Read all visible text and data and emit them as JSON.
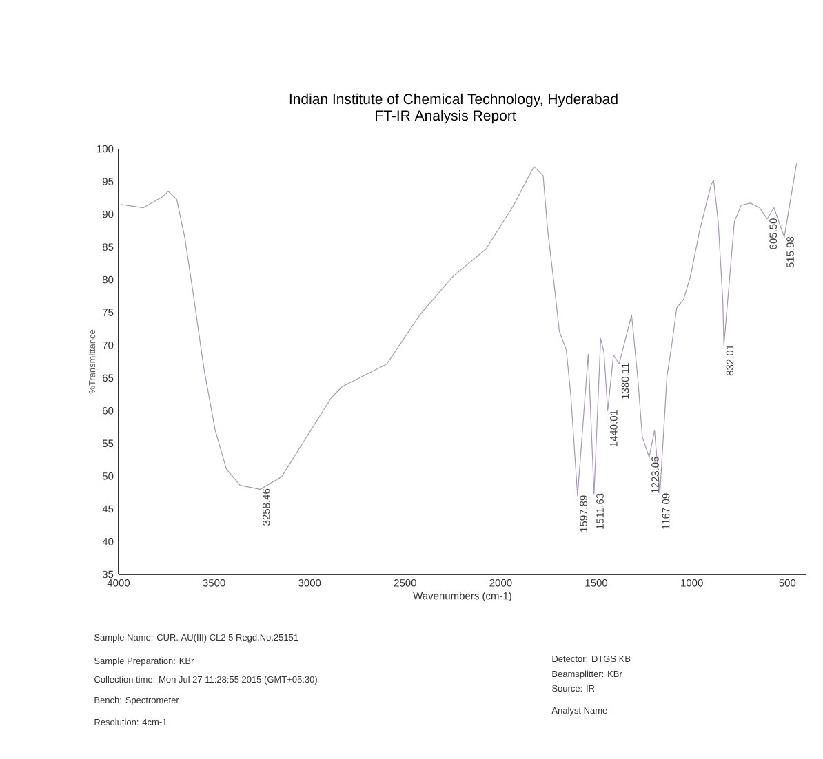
{
  "chart_data": {
    "type": "line",
    "title": "Indian Institute of Chemical Technology, Hyderabad",
    "subtitle": "FT-IR Analysis Report",
    "xlabel": "Wavenumbers (cm-1)",
    "ylabel": "%Transmittance",
    "xlim": [
      4000,
      400
    ],
    "ylim": [
      35,
      100
    ],
    "xticks": [
      4000,
      3500,
      3000,
      2500,
      2000,
      1500,
      1000,
      500
    ],
    "yticks": [
      35,
      40,
      45,
      50,
      55,
      60,
      65,
      70,
      75,
      80,
      85,
      90,
      95,
      100
    ],
    "x": [
      3986,
      3870,
      3769,
      3740,
      3696,
      3653,
      3610,
      3552,
      3494,
      3436,
      3364,
      3258.46,
      3147,
      3031,
      2886,
      2829,
      2597,
      2424,
      2250,
      2077,
      1932,
      1826,
      1778,
      1754,
      1717,
      1693,
      1657,
      1633,
      1597.89,
      1542,
      1511.63,
      1477,
      1460,
      1440.01,
      1410,
      1380.11,
      1315,
      1283,
      1259,
      1223.06,
      1195,
      1167.09,
      1130,
      1105,
      1079,
      1043,
      1007,
      959,
      899,
      886,
      862,
      838,
      832.01,
      777,
      741,
      693,
      645,
      605.5,
      570,
      515.98,
      452
    ],
    "series": [
      {
        "color": "#a898b0",
        "values": [
          91.5,
          91.0,
          92.7,
          93.5,
          92.3,
          86.4,
          78.0,
          66.2,
          57.0,
          51.1,
          48.6,
          48.0,
          49.9,
          55.3,
          62.0,
          63.7,
          67.1,
          74.6,
          80.5,
          84.7,
          91.4,
          97.3,
          95.9,
          87.5,
          78.4,
          72.1,
          69.3,
          62.3,
          47.0,
          68.6,
          47.3,
          71.0,
          69.0,
          60.0,
          68.5,
          67.2,
          74.6,
          65.1,
          56.0,
          52.9,
          57.0,
          47.3,
          65.2,
          70.0,
          75.7,
          77.0,
          80.5,
          87.5,
          94.5,
          95.2,
          88.9,
          77.0,
          70.0,
          88.9,
          91.4,
          91.7,
          91.0,
          89.3,
          91.0,
          86.5,
          97.7
        ]
      }
    ],
    "annotations": [
      {
        "text": "3258.46",
        "x": 3258.46,
        "y": 48.0
      },
      {
        "text": "1597.89",
        "x": 1597.89,
        "y": 47.0
      },
      {
        "text": "1511.63",
        "x": 1511.63,
        "y": 47.3
      },
      {
        "text": "1440.01",
        "x": 1440.01,
        "y": 60.0
      },
      {
        "text": "1380.11",
        "x": 1380.11,
        "y": 67.2
      },
      {
        "text": "1223.06",
        "x": 1223.06,
        "y": 52.9
      },
      {
        "text": "1167.09",
        "x": 1167.09,
        "y": 47.3
      },
      {
        "text": "832.01",
        "x": 832.01,
        "y": 70.0
      },
      {
        "text": "605.50",
        "x": 605.5,
        "y": 89.3
      },
      {
        "text": "515.98",
        "x": 515.98,
        "y": 86.5
      },
      "Sample Name: CUR. AU(III) CL2 5 Regd.No.25151",
      "Sample Preparation: KBr",
      "Collection time: Mon Jul 27 11:28:55 2015 (GMT+05:30)",
      "Bench: Spectrometer",
      "Resolution: 4cm-1",
      "Detector: DTGS KB",
      "Beamsplitter: KBr",
      "Source: IR",
      "Analyst Name"
    ]
  }
}
